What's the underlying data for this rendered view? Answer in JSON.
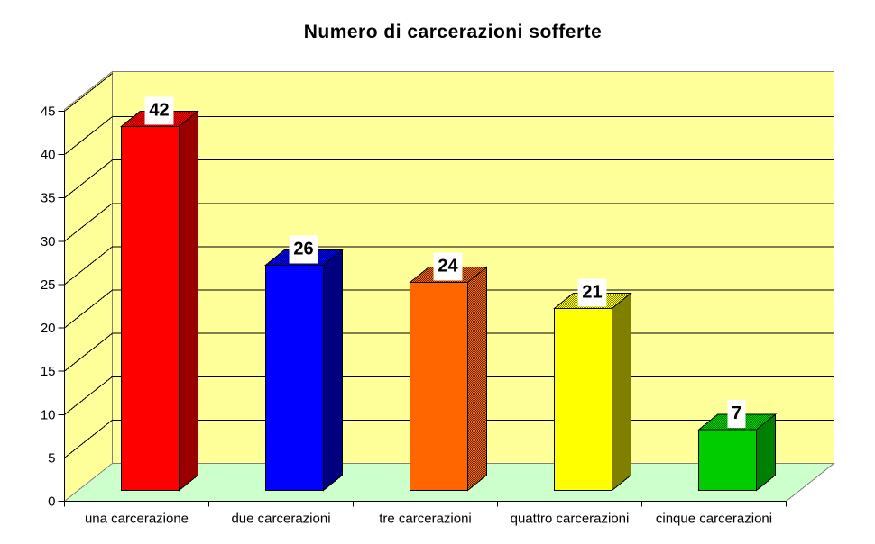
{
  "chart_data": {
    "type": "bar",
    "style": "3d-column",
    "title": "Numero di carcerazioni sofferte",
    "categories": [
      "una carcerazione",
      "due carcerazioni",
      "tre carcerazioni",
      "quattro carcerazioni",
      "cinque carcerazioni"
    ],
    "values": [
      42,
      26,
      24,
      21,
      7
    ],
    "data_labels": [
      "42",
      "26",
      "24",
      "21",
      "7"
    ],
    "bars": [
      {
        "front": "#FF0000",
        "dark": "#990000",
        "side_dithered": false
      },
      {
        "front": "#0000FF",
        "dark": "#000080",
        "side_dithered": false
      },
      {
        "front": "#FF6600",
        "dark": "#5C2900",
        "side_dithered": true
      },
      {
        "front": "#FFFF00",
        "dark": "#808000",
        "side_dithered": false
      },
      {
        "front": "#00CC00",
        "dark": "#008000",
        "side_dithered": false
      }
    ],
    "xlabel": "",
    "ylabel": "",
    "ylim": [
      0,
      45
    ],
    "ytick_step": 5,
    "ytick_labels": [
      "0",
      "5",
      "10",
      "15",
      "20",
      "25",
      "30",
      "35",
      "40",
      "45"
    ],
    "grid": true,
    "legend": "none",
    "colors": {
      "wall": "#FFFF99",
      "floor": "#CCFFCC",
      "wall_edge": "#808080",
      "gridline": "#000000",
      "axis": "#000000",
      "label_box": "#FFFFFF",
      "background": "#FFFFFF"
    }
  }
}
